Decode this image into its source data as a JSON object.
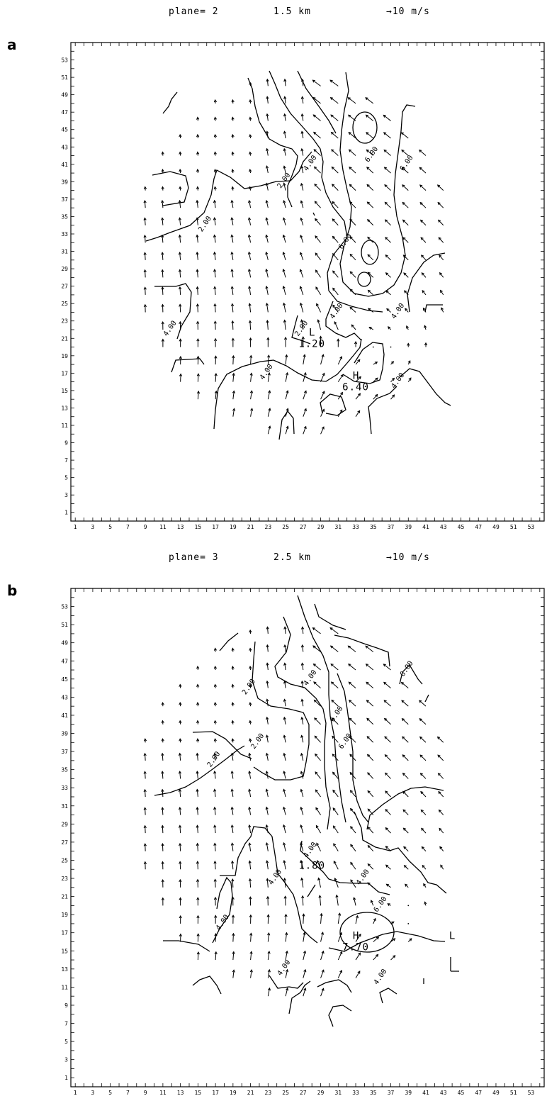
{
  "chart_data": [
    {
      "type": "vector-contour",
      "panel_label": "a",
      "plane_text": "plane= 2",
      "height_text": "1.5 km",
      "scale_text": "→10 m/s",
      "x_ticks": [
        "1",
        "3",
        "5",
        "7",
        "9",
        "11",
        "13",
        "15",
        "17",
        "19",
        "21",
        "23",
        "25",
        "27",
        "29",
        "31",
        "33",
        "35",
        "37",
        "39",
        "41",
        "43",
        "45",
        "47",
        "49",
        "51",
        "53"
      ],
      "y_ticks": [
        "1",
        "3",
        "5",
        "7",
        "9",
        "11",
        "13",
        "15",
        "17",
        "19",
        "21",
        "23",
        "25",
        "27",
        "29",
        "31",
        "33",
        "35",
        "37",
        "39",
        "41",
        "43",
        "45",
        "47",
        "49",
        "51",
        "53"
      ],
      "xlim": [
        0.5,
        54.5
      ],
      "ylim": [
        0,
        55
      ],
      "domain": {
        "x": [
          9,
          43
        ],
        "y": [
          10,
          51
        ]
      },
      "vortex_center": [
        32,
        20
      ],
      "contour_labels": [
        {
          "text": "2.00",
          "x": 16,
          "y": 34
        },
        {
          "text": "2.00",
          "x": 25,
          "y": 39
        },
        {
          "text": "4.00",
          "x": 28,
          "y": 41
        },
        {
          "text": "6.00",
          "x": 35,
          "y": 42
        },
        {
          "text": "6.00",
          "x": 39,
          "y": 41
        },
        {
          "text": "6.00",
          "x": 32,
          "y": 32
        },
        {
          "text": "4.00",
          "x": 31,
          "y": 24
        },
        {
          "text": "2.00",
          "x": 27,
          "y": 22
        },
        {
          "text": "4.00",
          "x": 12,
          "y": 22
        },
        {
          "text": "4.00",
          "x": 23,
          "y": 17
        },
        {
          "text": "4.00",
          "x": 38,
          "y": 16
        },
        {
          "text": "4.00",
          "x": 38,
          "y": 24
        }
      ],
      "extrema": [
        {
          "mark": "L",
          "value": "1.20",
          "x": 28,
          "y": 21
        },
        {
          "mark": "H",
          "value": "6.40",
          "x": 33,
          "y": 16
        }
      ]
    },
    {
      "type": "vector-contour",
      "panel_label": "b",
      "plane_text": "plane= 3",
      "height_text": "2.5 km",
      "scale_text": "→10 m/s",
      "x_ticks": [
        "1",
        "3",
        "5",
        "7",
        "9",
        "11",
        "13",
        "15",
        "17",
        "19",
        "21",
        "23",
        "25",
        "27",
        "29",
        "31",
        "33",
        "35",
        "37",
        "39",
        "41",
        "43",
        "45",
        "47",
        "49",
        "51",
        "53"
      ],
      "y_ticks": [
        "1",
        "3",
        "5",
        "7",
        "9",
        "11",
        "13",
        "15",
        "17",
        "19",
        "21",
        "23",
        "25",
        "27",
        "29",
        "31",
        "33",
        "35",
        "37",
        "39",
        "41",
        "43",
        "45",
        "47",
        "49",
        "51",
        "53"
      ],
      "xlim": [
        0.5,
        54.5
      ],
      "ylim": [
        0,
        55
      ],
      "domain": {
        "x": [
          9,
          43
        ],
        "y": [
          10,
          51
        ]
      },
      "vortex_center": [
        34,
        19
      ],
      "contour_labels": [
        {
          "text": "2.00",
          "x": 21,
          "y": 44
        },
        {
          "text": "2.00",
          "x": 17,
          "y": 36
        },
        {
          "text": "2.00",
          "x": 22,
          "y": 38
        },
        {
          "text": "4.00",
          "x": 28,
          "y": 45
        },
        {
          "text": "6.00",
          "x": 31,
          "y": 41
        },
        {
          "text": "6.00",
          "x": 32,
          "y": 38
        },
        {
          "text": "6.00",
          "x": 39,
          "y": 46
        },
        {
          "text": "4.00",
          "x": 28,
          "y": 26
        },
        {
          "text": "4.00",
          "x": 24,
          "y": 23
        },
        {
          "text": "4.00",
          "x": 18,
          "y": 18
        },
        {
          "text": "4.00",
          "x": 34,
          "y": 23
        },
        {
          "text": "6.00",
          "x": 36,
          "y": 20
        },
        {
          "text": "4.00",
          "x": 25,
          "y": 13
        },
        {
          "text": "4.00",
          "x": 36,
          "y": 12
        }
      ],
      "extrema": [
        {
          "mark": "",
          "value": "1.80",
          "x": 28,
          "y": 25
        },
        {
          "mark": "H",
          "value": "7.70",
          "x": 33,
          "y": 16
        },
        {
          "mark": "L",
          "value": "",
          "x": 44,
          "y": 16
        }
      ]
    }
  ]
}
